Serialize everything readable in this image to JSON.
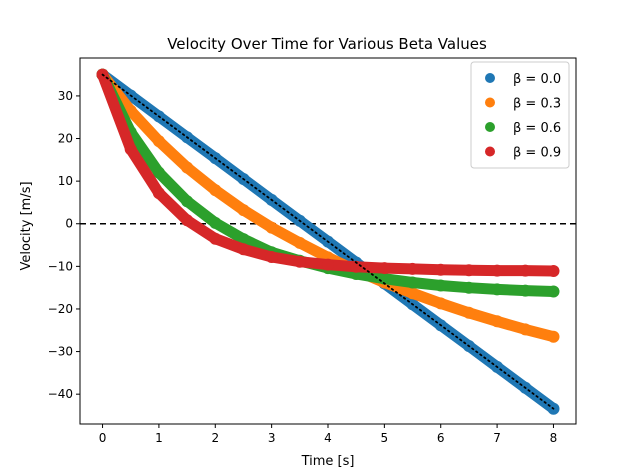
{
  "chart_data": {
    "type": "scatter",
    "title": "Velocity Over Time for Various Beta Values",
    "xlabel": "Time [s]",
    "ylabel": "Velocity [m/s]",
    "xlim": [
      -0.4,
      8.4
    ],
    "ylim": [
      -47.0,
      38.9
    ],
    "xticks": [
      0,
      1,
      2,
      3,
      4,
      5,
      6,
      7,
      8
    ],
    "yticks": [
      -40,
      -30,
      -20,
      -10,
      0,
      10,
      20,
      30
    ],
    "ytick_labels": [
      "−40",
      "−30",
      "−20",
      "−10",
      "0",
      "10",
      "20",
      "30"
    ],
    "grid": false,
    "legend_position": "top-right",
    "reference_lines": [
      {
        "kind": "horizontal",
        "y": 0,
        "style": "dashed",
        "color": "#000000"
      },
      {
        "kind": "line",
        "x": [
          0,
          8
        ],
        "y": [
          35,
          -43.4
        ],
        "style": "dotted",
        "color": "#000000"
      }
    ],
    "series": [
      {
        "name": "β = 0.0",
        "color": "#1f77b4",
        "x": [
          0,
          0.5,
          1,
          1.5,
          2,
          2.5,
          3,
          3.5,
          4,
          4.5,
          5,
          5.5,
          6,
          6.5,
          7,
          7.5,
          8
        ],
        "y": [
          35.0,
          30.1,
          25.2,
          20.3,
          15.4,
          10.5,
          5.6,
          0.7,
          -4.2,
          -9.1,
          -14.0,
          -18.9,
          -23.8,
          -28.7,
          -33.6,
          -38.5,
          -43.4
        ]
      },
      {
        "name": "β = 0.3",
        "color": "#ff7f0e",
        "x": [
          0,
          0.5,
          1,
          1.5,
          2,
          2.5,
          3,
          3.5,
          4,
          4.5,
          5,
          5.5,
          6,
          6.5,
          7,
          7.5,
          8
        ],
        "y": [
          35.0,
          26.5,
          19.4,
          13.2,
          7.9,
          3.2,
          -0.9,
          -4.5,
          -7.9,
          -11.0,
          -13.8,
          -16.3,
          -18.7,
          -20.9,
          -22.9,
          -24.8,
          -26.5
        ]
      },
      {
        "name": "β = 0.6",
        "color": "#2ca02c",
        "x": [
          0,
          0.5,
          1,
          1.5,
          2,
          2.5,
          3,
          3.5,
          4,
          4.5,
          5,
          5.5,
          6,
          6.5,
          7,
          7.5,
          8
        ],
        "y": [
          35.0,
          21.5,
          12.0,
          5.3,
          0.2,
          -3.6,
          -6.7,
          -8.7,
          -10.4,
          -11.8,
          -12.9,
          -13.8,
          -14.5,
          -15.0,
          -15.4,
          -15.7,
          -15.9
        ]
      },
      {
        "name": "β = 0.9",
        "color": "#d62728",
        "x": [
          0,
          0.5,
          1,
          1.5,
          2,
          2.5,
          3,
          3.5,
          4,
          4.5,
          5,
          5.5,
          6,
          6.5,
          7,
          7.5,
          8
        ],
        "y": [
          35.0,
          17.5,
          7.2,
          0.8,
          -3.5,
          -6.0,
          -7.8,
          -8.9,
          -9.6,
          -10.1,
          -10.4,
          -10.6,
          -10.8,
          -10.9,
          -11.0,
          -11.0,
          -11.1
        ]
      }
    ]
  }
}
